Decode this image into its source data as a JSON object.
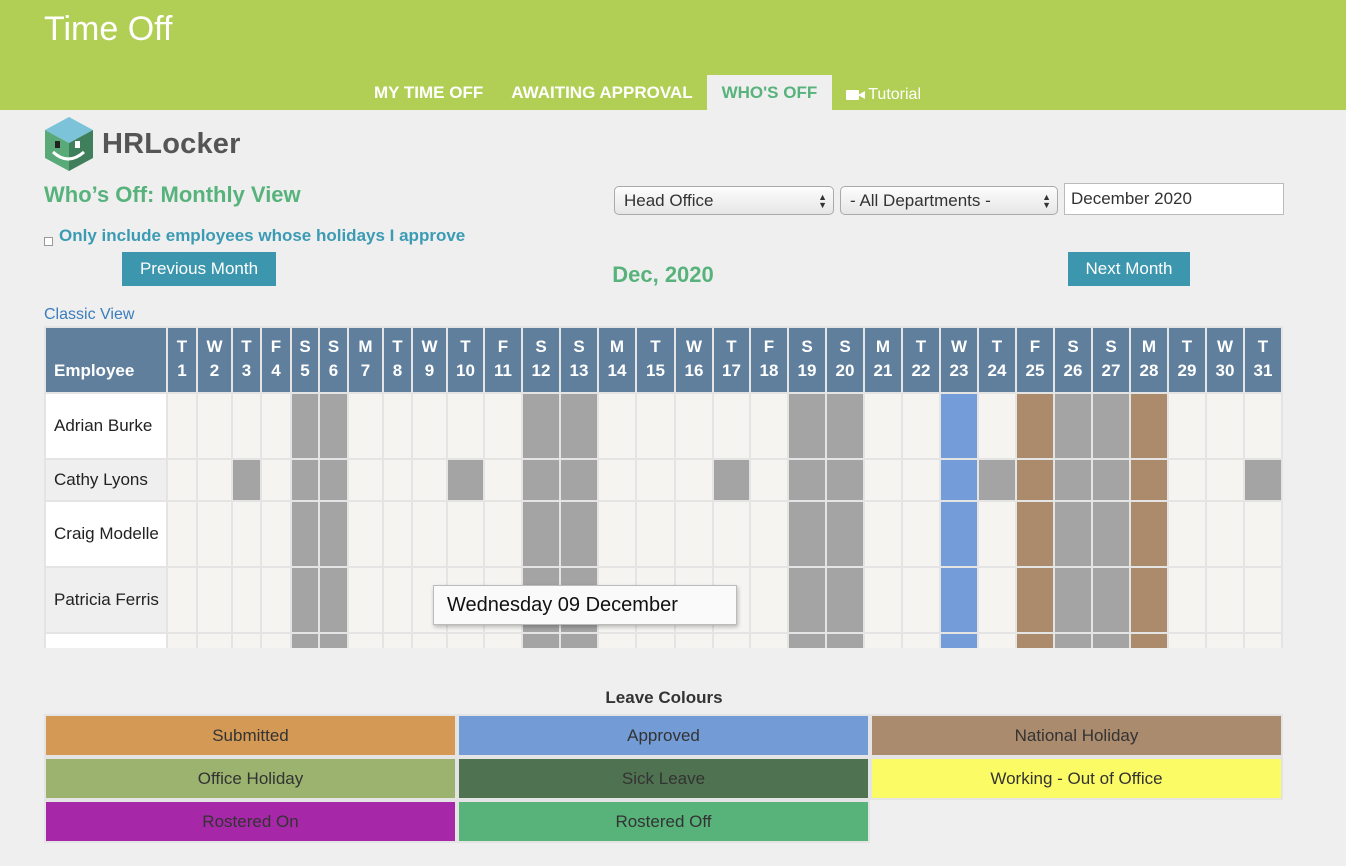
{
  "header": {
    "title": "Time Off",
    "tabs": [
      {
        "label": "MY TIME OFF"
      },
      {
        "label": "AWAITING APPROVAL"
      },
      {
        "label": "WHO'S OFF"
      }
    ],
    "tutorial_label": "Tutorial"
  },
  "logo": {
    "text": "HRLocker"
  },
  "page": {
    "heading": "Who’s Off: Monthly View",
    "office_select": "Head Office",
    "department_select": "- All Departments -",
    "month_input": "December 2020",
    "filter_label": "Only include employees whose holidays I approve",
    "prev_button": "Previous Month",
    "next_button": "Next Month",
    "month_heading": "Dec, 2020",
    "classic_view_link": "Classic View"
  },
  "calendar": {
    "employee_header": "Employee",
    "days": [
      {
        "w": "T",
        "d": "1"
      },
      {
        "w": "W",
        "d": "2"
      },
      {
        "w": "T",
        "d": "3"
      },
      {
        "w": "F",
        "d": "4"
      },
      {
        "w": "S",
        "d": "5"
      },
      {
        "w": "S",
        "d": "6"
      },
      {
        "w": "M",
        "d": "7"
      },
      {
        "w": "T",
        "d": "8"
      },
      {
        "w": "W",
        "d": "9"
      },
      {
        "w": "T",
        "d": "10"
      },
      {
        "w": "F",
        "d": "11"
      },
      {
        "w": "S",
        "d": "12"
      },
      {
        "w": "S",
        "d": "13"
      },
      {
        "w": "M",
        "d": "14"
      },
      {
        "w": "T",
        "d": "15"
      },
      {
        "w": "W",
        "d": "16"
      },
      {
        "w": "T",
        "d": "17"
      },
      {
        "w": "F",
        "d": "18"
      },
      {
        "w": "S",
        "d": "19"
      },
      {
        "w": "S",
        "d": "20"
      },
      {
        "w": "M",
        "d": "21"
      },
      {
        "w": "T",
        "d": "22"
      },
      {
        "w": "W",
        "d": "23"
      },
      {
        "w": "T",
        "d": "24"
      },
      {
        "w": "F",
        "d": "25"
      },
      {
        "w": "S",
        "d": "26"
      },
      {
        "w": "S",
        "d": "27"
      },
      {
        "w": "M",
        "d": "28"
      },
      {
        "w": "T",
        "d": "29"
      },
      {
        "w": "W",
        "d": "30"
      },
      {
        "w": "T",
        "d": "31"
      }
    ],
    "weekend_days": [
      5,
      6,
      12,
      13,
      19,
      20,
      26,
      27
    ],
    "approved_days": [
      23
    ],
    "national_holiday_days": [
      25,
      28
    ],
    "employees": [
      {
        "name": "Adrian Burke",
        "grey_days": []
      },
      {
        "name": "Cathy Lyons",
        "grey_days": [
          3,
          10,
          17,
          24,
          31
        ]
      },
      {
        "name": "Craig Modelle",
        "grey_days": []
      },
      {
        "name": "Patricia Ferris",
        "grey_days": []
      },
      {
        "name": "",
        "grey_days": []
      }
    ]
  },
  "tooltip": {
    "text": "Wednesday 09 December"
  },
  "legend": {
    "title": "Leave Colours",
    "items": [
      {
        "label": "Submitted",
        "color": "#d49a55"
      },
      {
        "label": "Approved",
        "color": "#739bd6"
      },
      {
        "label": "National Holiday",
        "color": "#ab8b6d"
      },
      {
        "label": "Office Holiday",
        "color": "#9cb36f"
      },
      {
        "label": "Sick Leave",
        "color": "#4f7250"
      },
      {
        "label": "Working - Out of Office",
        "color": "#fbfb66"
      },
      {
        "label": "Rostered On",
        "color": "#a627a7"
      },
      {
        "label": "Rostered Off",
        "color": "#57b37a"
      }
    ]
  }
}
